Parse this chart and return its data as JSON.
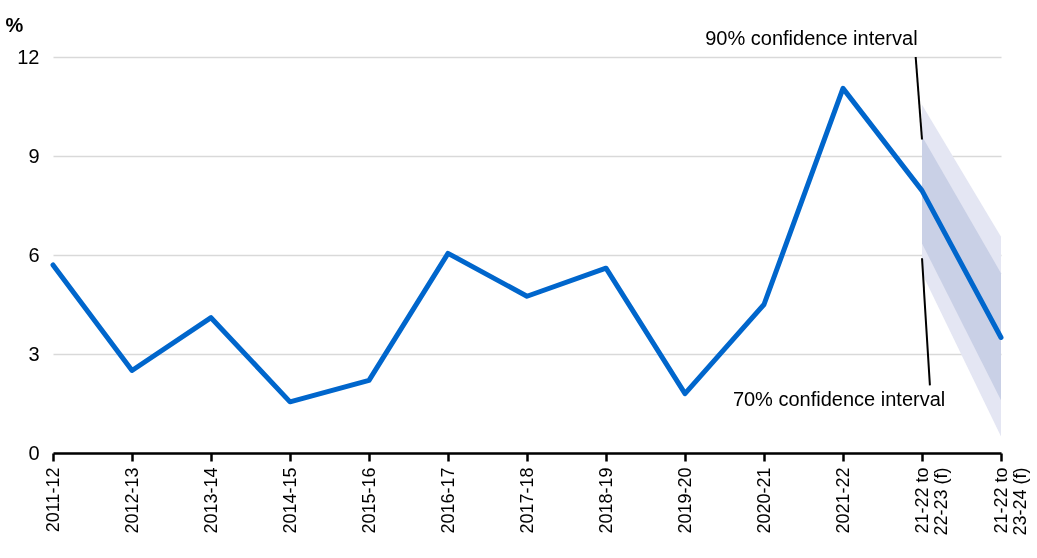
{
  "chart_data": {
    "type": "line",
    "ylabel": "%",
    "categories": [
      "2011-12",
      "2012-13",
      "2013-14",
      "2014-15",
      "2015-16",
      "2016-17",
      "2017-18",
      "2018-19",
      "2019-20",
      "2020-21",
      "2021-22",
      "21-22 to 22-23 (f)",
      "21-22 to 23-24 (f)"
    ],
    "series": [
      {
        "color": "#0066cc",
        "values": [
          5.7,
          2.5,
          4.1,
          1.55,
          2.2,
          6.05,
          4.75,
          5.6,
          1.8,
          4.5,
          11.05,
          7.95,
          3.5
        ]
      },
      {
        "color": "#e4e6f3",
        "values": [
          null,
          null,
          null,
          null,
          null,
          null,
          null,
          null,
          null,
          null,
          null,
          null,
          null
        ],
        "lower": [
          null,
          null,
          null,
          null,
          null,
          null,
          null,
          null,
          null,
          null,
          null,
          5.45,
          0.5
        ],
        "upper": [
          null,
          null,
          null,
          null,
          null,
          null,
          null,
          null,
          null,
          null,
          null,
          10.55,
          6.55
        ]
      },
      {
        "color": "#c9d0e6",
        "values": [
          null,
          null,
          null,
          null,
          null,
          null,
          null,
          null,
          null,
          null,
          null,
          null,
          null
        ],
        "lower": [
          null,
          null,
          null,
          null,
          null,
          null,
          null,
          null,
          null,
          null,
          null,
          6.35,
          1.6
        ],
        "upper": [
          null,
          null,
          null,
          null,
          null,
          null,
          null,
          null,
          null,
          null,
          null,
          9.6,
          5.45
        ]
      }
    ],
    "annotations": [
      {
        "text": "90% confidence interval",
        "x": "21-22 to 22-23 (f)",
        "y": 9.5
      },
      {
        "text": "70% confidence interval",
        "x": "21-22 to 22-23 (f)",
        "y": 5.9
      }
    ],
    "ylim": [
      0,
      12
    ],
    "yticks": [
      0,
      3,
      6,
      9,
      12
    ],
    "grid": "y",
    "marker": "none",
    "line_style": "solid"
  }
}
